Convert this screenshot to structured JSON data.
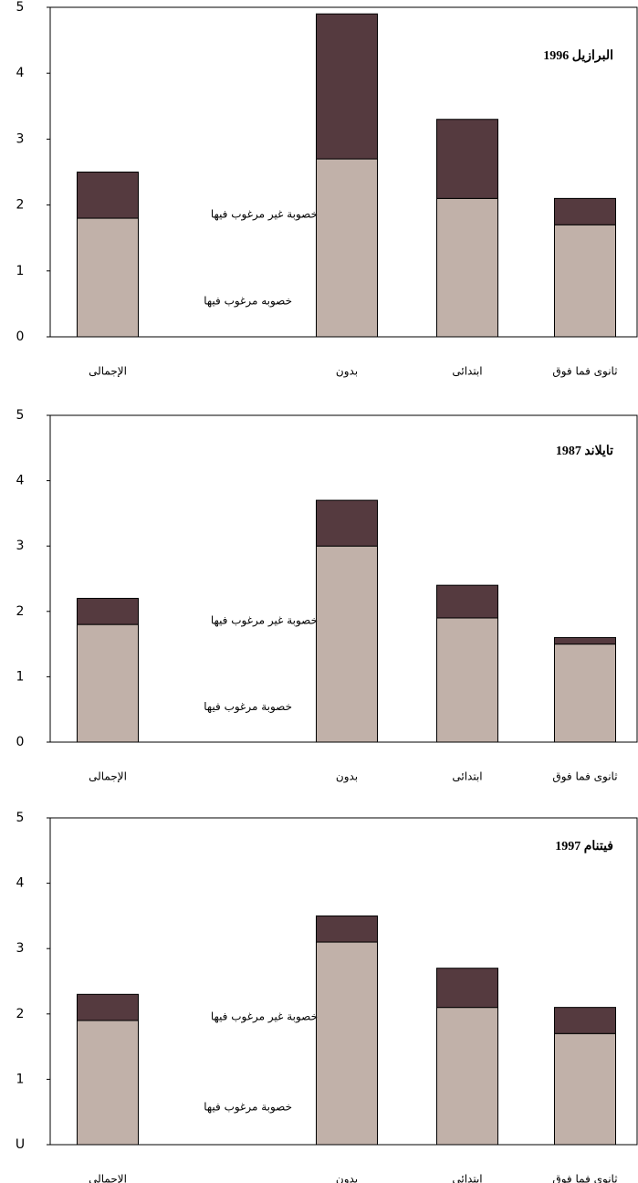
{
  "chart_data": [
    {
      "type": "bar",
      "stacked": true,
      "title": "البرازيل 1996",
      "categories": [
        "الإجمالى",
        "بدون",
        "ابتدائى",
        "ثانوى فما فوق"
      ],
      "series": [
        {
          "name": "خصوبه مرغوب فيها",
          "color": "#c1b1a9",
          "values": [
            1.8,
            2.7,
            2.1,
            1.7
          ]
        },
        {
          "name": "خصوبة غير مرغوب فيها",
          "color": "#553a3f",
          "values": [
            0.7,
            2.2,
            1.2,
            0.4
          ]
        }
      ],
      "ylim": [
        0,
        5
      ],
      "yticks": [
        0,
        1,
        2,
        3,
        4,
        5
      ]
    },
    {
      "type": "bar",
      "stacked": true,
      "title": "تايلاند 1987",
      "categories": [
        "الإجمالى",
        "بدون",
        "ابتدائى",
        "ثانوى فما فوق"
      ],
      "series": [
        {
          "name": "خصوبة مرغوب فيها",
          "color": "#c1b1a9",
          "values": [
            1.8,
            3.0,
            1.9,
            1.5
          ]
        },
        {
          "name": "خصوبة غير مرغوب فيها",
          "color": "#553a3f",
          "values": [
            0.4,
            0.7,
            0.5,
            0.1
          ]
        }
      ],
      "ylim": [
        0,
        5
      ],
      "yticks": [
        0,
        1,
        2,
        3,
        4,
        5
      ]
    },
    {
      "type": "bar",
      "stacked": true,
      "title": "فيتنام 1997",
      "categories": [
        "الإجمالى",
        "بدون",
        "ابتدائى",
        "ثانوى فما فوق"
      ],
      "series": [
        {
          "name": "خصوبة مرغوب فيها",
          "color": "#c1b1a9",
          "values": [
            1.9,
            3.1,
            2.1,
            1.7
          ]
        },
        {
          "name": "خصوبة غير مرغوب فيها",
          "color": "#553a3f",
          "values": [
            0.4,
            0.4,
            0.6,
            0.4
          ]
        }
      ],
      "ylim": [
        0,
        5
      ],
      "yticks": [
        {
          "value": 0,
          "label": "U"
        },
        1,
        2,
        3,
        4,
        5
      ]
    }
  ]
}
